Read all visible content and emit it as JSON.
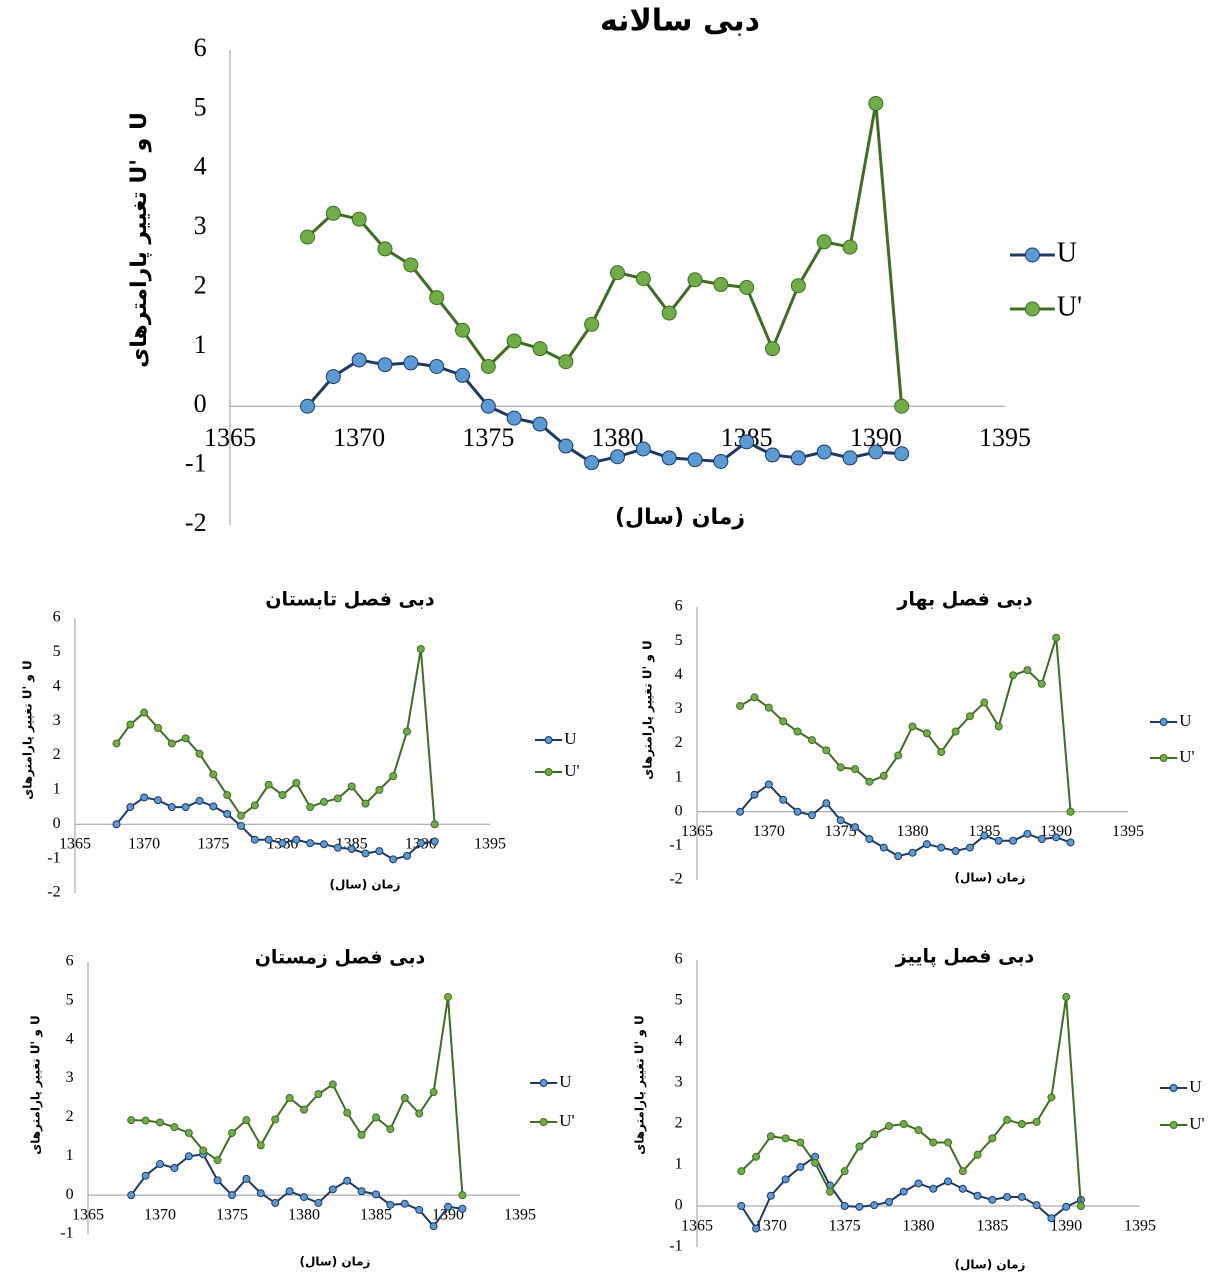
{
  "chart_data": [
    {
      "type": "line",
      "title": "دبی سالانه",
      "x_label": "زمان (سال)",
      "y_label": "تغییر پارامترهای U' و U",
      "x": [
        1368,
        1369,
        1370,
        1371,
        1372,
        1373,
        1374,
        1375,
        1376,
        1377,
        1378,
        1379,
        1380,
        1381,
        1382,
        1383,
        1384,
        1385,
        1386,
        1387,
        1388,
        1389,
        1390,
        1391
      ],
      "series": [
        {
          "name": "U",
          "color": "#1f3864",
          "marker_color": "#5b9bd5",
          "values": [
            0,
            0.5,
            0.78,
            0.7,
            0.73,
            0.67,
            0.52,
            0,
            -0.2,
            -0.3,
            -0.67,
            -0.95,
            -0.85,
            -0.72,
            -0.87,
            -0.9,
            -0.93,
            -0.6,
            -0.82,
            -0.87,
            -0.77,
            -0.87,
            -0.77,
            -0.8
          ]
        },
        {
          "name": "U'",
          "color": "#3f6e23",
          "marker_color": "#70ad47",
          "values": [
            2.85,
            3.25,
            3.15,
            2.65,
            2.38,
            1.83,
            1.28,
            0.67,
            1.1,
            0.97,
            0.75,
            1.38,
            2.25,
            2.15,
            1.57,
            2.13,
            2.05,
            2.0,
            0.97,
            2.03,
            2.77,
            2.68,
            5.1,
            0
          ]
        }
      ],
      "xlim": [
        1365,
        1395
      ],
      "xticks": [
        1365,
        1370,
        1375,
        1380,
        1385,
        1390,
        1395
      ],
      "ylim": [
        -2,
        6
      ],
      "yticks": [
        -2,
        -1,
        0,
        1,
        2,
        3,
        4,
        5,
        6
      ]
    },
    {
      "type": "line",
      "title": "دبی فصل تابستان",
      "x_label": "زمان (سال)",
      "y_label": "تغییر پارامترهای U' و U",
      "x": [
        1368,
        1369,
        1370,
        1371,
        1372,
        1373,
        1374,
        1375,
        1376,
        1377,
        1378,
        1379,
        1380,
        1381,
        1382,
        1383,
        1384,
        1385,
        1386,
        1387,
        1388,
        1389,
        1390,
        1391
      ],
      "series": [
        {
          "name": "U",
          "color": "#1f3864",
          "marker_color": "#5b9bd5",
          "values": [
            0,
            0.5,
            0.78,
            0.7,
            0.5,
            0.5,
            0.68,
            0.52,
            0.3,
            -0.05,
            -0.45,
            -0.45,
            -0.55,
            -0.45,
            -0.55,
            -0.58,
            -0.68,
            -0.72,
            -0.85,
            -0.78,
            -1.02,
            -0.92,
            -0.55,
            -0.5
          ]
        },
        {
          "name": "U'",
          "color": "#3f6e23",
          "marker_color": "#70ad47",
          "values": [
            2.35,
            2.9,
            3.25,
            2.8,
            2.35,
            2.5,
            2.05,
            1.45,
            0.85,
            0.25,
            0.55,
            1.15,
            0.85,
            1.2,
            0.5,
            0.65,
            0.75,
            1.1,
            0.6,
            1.0,
            1.4,
            2.7,
            5.1,
            0
          ]
        }
      ],
      "xlim": [
        1365,
        1395
      ],
      "xticks": [
        1365,
        1370,
        1375,
        1380,
        1385,
        1390,
        1395
      ],
      "ylim": [
        -2,
        6
      ],
      "yticks": [
        -2,
        -1,
        0,
        1,
        2,
        3,
        4,
        5,
        6
      ]
    },
    {
      "type": "line",
      "title": "دبی فصل بهار",
      "x_label": "زمان (سال)",
      "y_label": "تغییر پارامترهای U' و U",
      "x": [
        1368,
        1369,
        1370,
        1371,
        1372,
        1373,
        1374,
        1375,
        1376,
        1377,
        1378,
        1379,
        1380,
        1381,
        1382,
        1383,
        1384,
        1385,
        1386,
        1387,
        1388,
        1389,
        1390,
        1391
      ],
      "series": [
        {
          "name": "U",
          "color": "#1f3864",
          "marker_color": "#5b9bd5",
          "values": [
            0,
            0.5,
            0.8,
            0.35,
            0,
            -0.1,
            0.25,
            -0.25,
            -0.45,
            -0.8,
            -1.05,
            -1.3,
            -1.2,
            -0.95,
            -1.05,
            -1.15,
            -1.05,
            -0.7,
            -0.85,
            -0.85,
            -0.65,
            -0.8,
            -0.75,
            -0.9
          ]
        },
        {
          "name": "U'",
          "color": "#3f6e23",
          "marker_color": "#70ad47",
          "values": [
            3.1,
            3.35,
            3.05,
            2.65,
            2.35,
            2.1,
            1.8,
            1.3,
            1.25,
            0.88,
            1.05,
            1.65,
            2.5,
            2.3,
            1.75,
            2.35,
            2.8,
            3.2,
            2.5,
            4.0,
            4.15,
            3.75,
            5.1,
            0
          ]
        }
      ],
      "xlim": [
        1365,
        1395
      ],
      "xticks": [
        1365,
        1370,
        1375,
        1380,
        1385,
        1390,
        1395
      ],
      "ylim": [
        -2,
        6
      ],
      "yticks": [
        -2,
        -1,
        0,
        1,
        2,
        3,
        4,
        5,
        6
      ]
    },
    {
      "type": "line",
      "title": "دبی فصل زمستان",
      "x_label": "زمان (سال)",
      "y_label": "تغییر پارامترهای U' و U",
      "x": [
        1368,
        1369,
        1370,
        1371,
        1372,
        1373,
        1374,
        1375,
        1376,
        1377,
        1378,
        1379,
        1380,
        1381,
        1382,
        1383,
        1384,
        1385,
        1386,
        1387,
        1388,
        1389,
        1390,
        1391
      ],
      "series": [
        {
          "name": "U",
          "color": "#1f3864",
          "marker_color": "#5b9bd5",
          "values": [
            0,
            0.5,
            0.8,
            0.7,
            1.0,
            1.05,
            0.38,
            0,
            0.42,
            0.05,
            -0.2,
            0.1,
            -0.05,
            -0.2,
            0.15,
            0.37,
            0.1,
            0.02,
            -0.25,
            -0.22,
            -0.38,
            -0.8,
            -0.3,
            -0.35
          ]
        },
        {
          "name": "U'",
          "color": "#3f6e23",
          "marker_color": "#70ad47",
          "values": [
            1.93,
            1.92,
            1.87,
            1.75,
            1.6,
            1.15,
            0.9,
            1.6,
            1.93,
            1.28,
            1.95,
            2.5,
            2.2,
            2.6,
            2.85,
            2.12,
            1.55,
            2.0,
            1.7,
            2.5,
            2.1,
            2.65,
            5.1,
            0
          ]
        }
      ],
      "xlim": [
        1365,
        1395
      ],
      "xticks": [
        1365,
        1370,
        1375,
        1380,
        1385,
        1390,
        1395
      ],
      "ylim": [
        -1,
        6
      ],
      "yticks": [
        -1,
        0,
        1,
        2,
        3,
        4,
        5,
        6
      ]
    },
    {
      "type": "line",
      "title": "دبی فصل پاییز",
      "x_label": "زمان (سال)",
      "y_label": "تغییر پارامترهای U' و U",
      "x": [
        1368,
        1369,
        1370,
        1371,
        1372,
        1373,
        1374,
        1375,
        1376,
        1377,
        1378,
        1379,
        1380,
        1381,
        1382,
        1383,
        1384,
        1385,
        1386,
        1387,
        1388,
        1389,
        1390,
        1391
      ],
      "series": [
        {
          "name": "U",
          "color": "#1f3864",
          "marker_color": "#5b9bd5",
          "values": [
            0,
            -0.55,
            0.25,
            0.65,
            0.95,
            1.2,
            0.5,
            0,
            -0.02,
            0.02,
            0.1,
            0.35,
            0.55,
            0.42,
            0.6,
            0.42,
            0.25,
            0.15,
            0.22,
            0.22,
            0.02,
            -0.3,
            -0.02,
            0.15
          ]
        },
        {
          "name": "U'",
          "color": "#3f6e23",
          "marker_color": "#70ad47",
          "values": [
            0.85,
            1.2,
            1.7,
            1.65,
            1.55,
            1.05,
            0.35,
            0.85,
            1.45,
            1.75,
            1.95,
            2.0,
            1.85,
            1.55,
            1.55,
            0.85,
            1.25,
            1.65,
            2.1,
            2.0,
            2.05,
            2.65,
            5.1,
            0
          ]
        }
      ],
      "xlim": [
        1365,
        1395
      ],
      "xticks": [
        1365,
        1370,
        1375,
        1380,
        1385,
        1390,
        1395
      ],
      "ylim": [
        -1,
        6
      ],
      "yticks": [
        -1,
        0,
        1,
        2,
        3,
        4,
        5,
        6
      ]
    }
  ]
}
